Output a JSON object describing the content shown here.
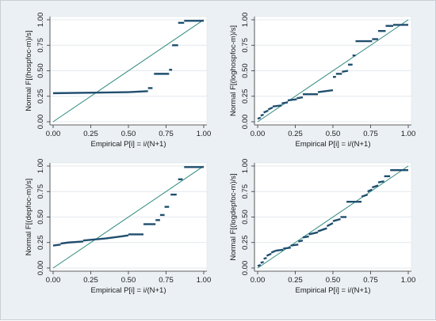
{
  "colors": {
    "outer_background": "#ebf0f4",
    "plot_background": "#ffffff",
    "reference_line": "#2f8a7e",
    "data_marks": "#1f4e6e",
    "grid": "#e3e9ee"
  },
  "chart_data": [
    {
      "type": "scatter",
      "title": "",
      "xlabel": "Empirical P[i] = i/(N+1)",
      "ylabel": "Normal F[(hospfoc-m)/s]",
      "xlim": [
        0,
        1
      ],
      "ylim": [
        0,
        1
      ],
      "x_ticks": [
        "0.00",
        "0.25",
        "0.50",
        "0.75",
        "1.00"
      ],
      "y_ticks": [
        "0.00",
        "0.25",
        "0.50",
        "0.75",
        "1.00"
      ],
      "grid": true,
      "reference_line": {
        "x": [
          0,
          1
        ],
        "y": [
          0,
          1
        ]
      },
      "steps": [
        {
          "x0": 0.0,
          "x1": 0.5,
          "y0": 0.28,
          "y1": 0.29
        },
        {
          "x0": 0.5,
          "x1": 0.63,
          "y0": 0.29,
          "y1": 0.3
        },
        {
          "x0": 0.63,
          "x1": 0.66,
          "y0": 0.33,
          "y1": 0.33
        },
        {
          "x0": 0.67,
          "x1": 0.77,
          "y0": 0.47,
          "y1": 0.47
        },
        {
          "x0": 0.77,
          "x1": 0.79,
          "y0": 0.51,
          "y1": 0.51
        },
        {
          "x0": 0.79,
          "x1": 0.83,
          "y0": 0.75,
          "y1": 0.75
        },
        {
          "x0": 0.83,
          "x1": 0.87,
          "y0": 0.97,
          "y1": 0.97
        },
        {
          "x0": 0.87,
          "x1": 1.0,
          "y0": 0.99,
          "y1": 0.99
        }
      ]
    },
    {
      "type": "scatter",
      "title": "",
      "xlabel": "Empirical P[i] = i/(N+1)",
      "ylabel": "Normal F[(loghospfoc-m)/s]",
      "xlim": [
        0,
        1
      ],
      "ylim": [
        0,
        1
      ],
      "x_ticks": [
        "0.00",
        "0.25",
        "0.50",
        "0.75",
        "1.00"
      ],
      "y_ticks": [
        "0.00",
        "0.25",
        "0.50",
        "0.75",
        "1.00"
      ],
      "grid": true,
      "reference_line": {
        "x": [
          0,
          1
        ],
        "y": [
          0,
          1
        ]
      },
      "steps": [
        {
          "x0": 0.0,
          "x1": 0.02,
          "y0": 0.03,
          "y1": 0.04
        },
        {
          "x0": 0.02,
          "x1": 0.04,
          "y0": 0.06,
          "y1": 0.07
        },
        {
          "x0": 0.04,
          "x1": 0.07,
          "y0": 0.09,
          "y1": 0.11
        },
        {
          "x0": 0.07,
          "x1": 0.1,
          "y0": 0.12,
          "y1": 0.14
        },
        {
          "x0": 0.1,
          "x1": 0.16,
          "y0": 0.15,
          "y1": 0.16
        },
        {
          "x0": 0.16,
          "x1": 0.2,
          "y0": 0.18,
          "y1": 0.19
        },
        {
          "x0": 0.2,
          "x1": 0.26,
          "y0": 0.21,
          "y1": 0.22
        },
        {
          "x0": 0.26,
          "x1": 0.3,
          "y0": 0.23,
          "y1": 0.24
        },
        {
          "x0": 0.3,
          "x1": 0.4,
          "y0": 0.27,
          "y1": 0.27
        },
        {
          "x0": 0.4,
          "x1": 0.5,
          "y0": 0.29,
          "y1": 0.31
        },
        {
          "x0": 0.5,
          "x1": 0.52,
          "y0": 0.44,
          "y1": 0.44
        },
        {
          "x0": 0.52,
          "x1": 0.56,
          "y0": 0.47,
          "y1": 0.47
        },
        {
          "x0": 0.56,
          "x1": 0.6,
          "y0": 0.49,
          "y1": 0.5
        },
        {
          "x0": 0.6,
          "x1": 0.63,
          "y0": 0.56,
          "y1": 0.56
        },
        {
          "x0": 0.63,
          "x1": 0.65,
          "y0": 0.65,
          "y1": 0.65
        },
        {
          "x0": 0.65,
          "x1": 0.76,
          "y0": 0.79,
          "y1": 0.79
        },
        {
          "x0": 0.76,
          "x1": 0.8,
          "y0": 0.81,
          "y1": 0.81
        },
        {
          "x0": 0.8,
          "x1": 0.85,
          "y0": 0.89,
          "y1": 0.89
        },
        {
          "x0": 0.85,
          "x1": 0.9,
          "y0": 0.94,
          "y1": 0.94
        },
        {
          "x0": 0.9,
          "x1": 1.0,
          "y0": 0.95,
          "y1": 0.95
        }
      ]
    },
    {
      "type": "scatter",
      "title": "",
      "xlabel": "Empirical P[i] = i/(N+1)",
      "ylabel": "Normal F[(depfoc-m)/s]",
      "xlim": [
        0,
        1
      ],
      "ylim": [
        0,
        1
      ],
      "x_ticks": [
        "0.00",
        "0.25",
        "0.50",
        "0.75",
        "1.00"
      ],
      "y_ticks": [
        "0.00",
        "0.25",
        "0.50",
        "0.75",
        "1.00"
      ],
      "grid": true,
      "reference_line": {
        "x": [
          0,
          1
        ],
        "y": [
          0,
          1
        ]
      },
      "steps": [
        {
          "x0": 0.0,
          "x1": 0.05,
          "y0": 0.22,
          "y1": 0.23
        },
        {
          "x0": 0.05,
          "x1": 0.1,
          "y0": 0.24,
          "y1": 0.25
        },
        {
          "x0": 0.1,
          "x1": 0.2,
          "y0": 0.25,
          "y1": 0.26
        },
        {
          "x0": 0.2,
          "x1": 0.35,
          "y0": 0.27,
          "y1": 0.29
        },
        {
          "x0": 0.35,
          "x1": 0.45,
          "y0": 0.29,
          "y1": 0.31
        },
        {
          "x0": 0.45,
          "x1": 0.5,
          "y0": 0.31,
          "y1": 0.32
        },
        {
          "x0": 0.5,
          "x1": 0.6,
          "y0": 0.33,
          "y1": 0.33
        },
        {
          "x0": 0.6,
          "x1": 0.68,
          "y0": 0.43,
          "y1": 0.43
        },
        {
          "x0": 0.68,
          "x1": 0.71,
          "y0": 0.47,
          "y1": 0.47
        },
        {
          "x0": 0.71,
          "x1": 0.74,
          "y0": 0.52,
          "y1": 0.52
        },
        {
          "x0": 0.74,
          "x1": 0.77,
          "y0": 0.6,
          "y1": 0.6
        },
        {
          "x0": 0.78,
          "x1": 0.82,
          "y0": 0.72,
          "y1": 0.72
        },
        {
          "x0": 0.83,
          "x1": 0.86,
          "y0": 0.87,
          "y1": 0.87
        },
        {
          "x0": 0.87,
          "x1": 1.0,
          "y0": 0.99,
          "y1": 0.99
        }
      ]
    },
    {
      "type": "scatter",
      "title": "",
      "xlabel": "Empirical P[i] = i/(N+1)",
      "ylabel": "Normal F[(logdepfoc-m)/s]",
      "xlim": [
        0,
        1
      ],
      "ylim": [
        0,
        1
      ],
      "x_ticks": [
        "0.00",
        "0.25",
        "0.50",
        "0.75",
        "1.00"
      ],
      "y_ticks": [
        "0.00",
        "0.25",
        "0.50",
        "0.75",
        "1.00"
      ],
      "grid": true,
      "reference_line": {
        "x": [
          0,
          1
        ],
        "y": [
          0,
          1
        ]
      },
      "steps": [
        {
          "x0": 0.0,
          "x1": 0.02,
          "y0": 0.02,
          "y1": 0.03
        },
        {
          "x0": 0.02,
          "x1": 0.04,
          "y0": 0.05,
          "y1": 0.06
        },
        {
          "x0": 0.04,
          "x1": 0.06,
          "y0": 0.09,
          "y1": 0.1
        },
        {
          "x0": 0.06,
          "x1": 0.09,
          "y0": 0.12,
          "y1": 0.14
        },
        {
          "x0": 0.09,
          "x1": 0.12,
          "y0": 0.15,
          "y1": 0.17
        },
        {
          "x0": 0.12,
          "x1": 0.17,
          "y0": 0.17,
          "y1": 0.18
        },
        {
          "x0": 0.17,
          "x1": 0.22,
          "y0": 0.19,
          "y1": 0.2
        },
        {
          "x0": 0.22,
          "x1": 0.27,
          "y0": 0.22,
          "y1": 0.23
        },
        {
          "x0": 0.27,
          "x1": 0.3,
          "y0": 0.26,
          "y1": 0.27
        },
        {
          "x0": 0.3,
          "x1": 0.34,
          "y0": 0.3,
          "y1": 0.31
        },
        {
          "x0": 0.34,
          "x1": 0.4,
          "y0": 0.33,
          "y1": 0.35
        },
        {
          "x0": 0.4,
          "x1": 0.46,
          "y0": 0.36,
          "y1": 0.39
        },
        {
          "x0": 0.46,
          "x1": 0.5,
          "y0": 0.41,
          "y1": 0.44
        },
        {
          "x0": 0.5,
          "x1": 0.55,
          "y0": 0.46,
          "y1": 0.48
        },
        {
          "x0": 0.55,
          "x1": 0.59,
          "y0": 0.5,
          "y1": 0.5
        },
        {
          "x0": 0.59,
          "x1": 0.69,
          "y0": 0.65,
          "y1": 0.65
        },
        {
          "x0": 0.69,
          "x1": 0.73,
          "y0": 0.7,
          "y1": 0.72
        },
        {
          "x0": 0.73,
          "x1": 0.76,
          "y0": 0.75,
          "y1": 0.77
        },
        {
          "x0": 0.76,
          "x1": 0.8,
          "y0": 0.79,
          "y1": 0.81
        },
        {
          "x0": 0.8,
          "x1": 0.84,
          "y0": 0.84,
          "y1": 0.85
        },
        {
          "x0": 0.84,
          "x1": 0.88,
          "y0": 0.9,
          "y1": 0.9
        },
        {
          "x0": 0.88,
          "x1": 1.0,
          "y0": 0.96,
          "y1": 0.96
        }
      ]
    }
  ]
}
